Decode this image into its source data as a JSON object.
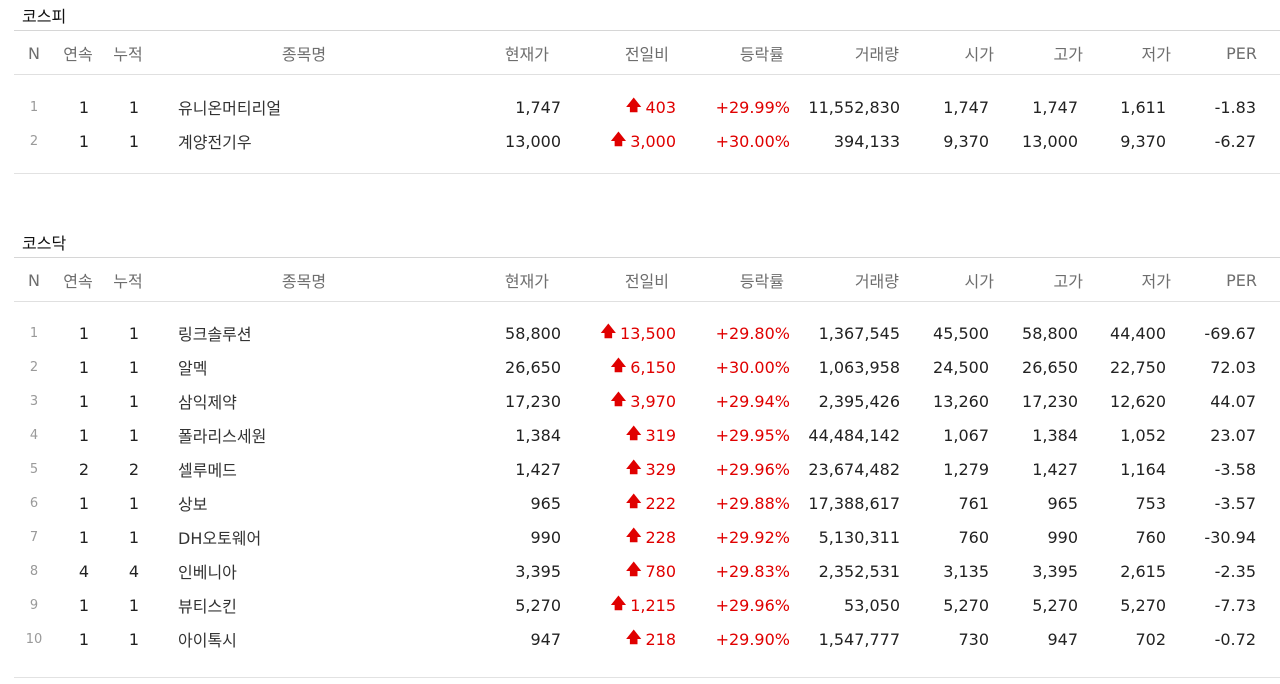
{
  "headers": [
    "N",
    "연속",
    "누적",
    "종목명",
    "현재가",
    "전일비",
    "등락률",
    "거래량",
    "시가",
    "고가",
    "저가",
    "PER"
  ],
  "kospi": {
    "title": "코스피",
    "rows": [
      {
        "n": "1",
        "cont": "1",
        "cum": "1",
        "name": "유니온머티리얼",
        "price": "1,747",
        "change": "403",
        "rate": "+29.99%",
        "volume": "11,552,830",
        "open": "1,747",
        "high": "1,747",
        "low": "1,611",
        "per": "-1.83"
      },
      {
        "n": "2",
        "cont": "1",
        "cum": "1",
        "name": "계양전기우",
        "price": "13,000",
        "change": "3,000",
        "rate": "+30.00%",
        "volume": "394,133",
        "open": "9,370",
        "high": "13,000",
        "low": "9,370",
        "per": "-6.27"
      }
    ]
  },
  "kosdaq": {
    "title": "코스닥",
    "rows": [
      {
        "n": "1",
        "cont": "1",
        "cum": "1",
        "name": "링크솔루션",
        "price": "58,800",
        "change": "13,500",
        "rate": "+29.80%",
        "volume": "1,367,545",
        "open": "45,500",
        "high": "58,800",
        "low": "44,400",
        "per": "-69.67"
      },
      {
        "n": "2",
        "cont": "1",
        "cum": "1",
        "name": "알멕",
        "price": "26,650",
        "change": "6,150",
        "rate": "+30.00%",
        "volume": "1,063,958",
        "open": "24,500",
        "high": "26,650",
        "low": "22,750",
        "per": "72.03"
      },
      {
        "n": "3",
        "cont": "1",
        "cum": "1",
        "name": "삼익제약",
        "price": "17,230",
        "change": "3,970",
        "rate": "+29.94%",
        "volume": "2,395,426",
        "open": "13,260",
        "high": "17,230",
        "low": "12,620",
        "per": "44.07"
      },
      {
        "n": "4",
        "cont": "1",
        "cum": "1",
        "name": "폴라리스세원",
        "price": "1,384",
        "change": "319",
        "rate": "+29.95%",
        "volume": "44,484,142",
        "open": "1,067",
        "high": "1,384",
        "low": "1,052",
        "per": "23.07"
      },
      {
        "n": "5",
        "cont": "2",
        "cum": "2",
        "name": "셀루메드",
        "price": "1,427",
        "change": "329",
        "rate": "+29.96%",
        "volume": "23,674,482",
        "open": "1,279",
        "high": "1,427",
        "low": "1,164",
        "per": "-3.58"
      },
      {
        "n": "6",
        "cont": "1",
        "cum": "1",
        "name": "상보",
        "price": "965",
        "change": "222",
        "rate": "+29.88%",
        "volume": "17,388,617",
        "open": "761",
        "high": "965",
        "low": "753",
        "per": "-3.57"
      },
      {
        "n": "7",
        "cont": "1",
        "cum": "1",
        "name": "DH오토웨어",
        "price": "990",
        "change": "228",
        "rate": "+29.92%",
        "volume": "5,130,311",
        "open": "760",
        "high": "990",
        "low": "760",
        "per": "-30.94"
      },
      {
        "n": "8",
        "cont": "4",
        "cum": "4",
        "name": "인베니아",
        "price": "3,395",
        "change": "780",
        "rate": "+29.83%",
        "volume": "2,352,531",
        "open": "3,135",
        "high": "3,395",
        "low": "2,615",
        "per": "-2.35"
      },
      {
        "n": "9",
        "cont": "1",
        "cum": "1",
        "name": "뷰티스킨",
        "price": "5,270",
        "change": "1,215",
        "rate": "+29.96%",
        "volume": "53,050",
        "open": "5,270",
        "high": "5,270",
        "low": "5,270",
        "per": "-7.73"
      },
      {
        "n": "10",
        "cont": "1",
        "cum": "1",
        "name": "아이톡시",
        "price": "947",
        "change": "218",
        "rate": "+29.90%",
        "volume": "1,547,777",
        "open": "730",
        "high": "947",
        "low": "702",
        "per": "-0.72"
      }
    ]
  },
  "colors": {
    "up": "#e00000",
    "header_text": "#6e6e6e",
    "line": "#d6d6d6"
  },
  "icons": {
    "change_up": "up-arrow-icon"
  }
}
